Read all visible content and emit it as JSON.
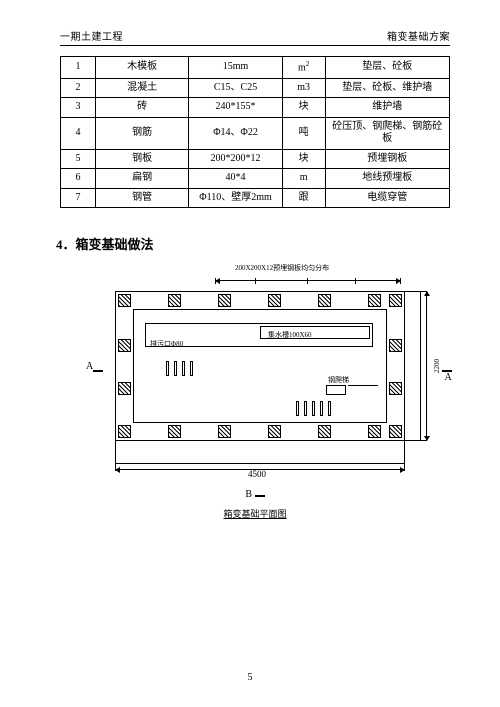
{
  "header": {
    "left": "一期土建工程",
    "right": "箱变基础方案"
  },
  "table": {
    "rows": [
      {
        "idx": "1",
        "name": "木模板",
        "spec": "15mm",
        "unit": "m²",
        "use": "垫层、砼板"
      },
      {
        "idx": "2",
        "name": "混凝土",
        "spec": "C15、C25",
        "unit": "m3",
        "use": "垫层、砼板、维护墙"
      },
      {
        "idx": "3",
        "name": "砖",
        "spec": "240*155*",
        "unit": "块",
        "use": "维护墙"
      },
      {
        "idx": "4",
        "name": "钢筋",
        "spec": "Φ14、Φ22",
        "unit": "吨",
        "use": "砼压顶、钢爬梯、钢筋砼板"
      },
      {
        "idx": "5",
        "name": "钢板",
        "spec": "200*200*12",
        "unit": "块",
        "use": "预埋钢板"
      },
      {
        "idx": "6",
        "name": "扁钢",
        "spec": "40*4",
        "unit": "m",
        "use": "地线预埋板"
      },
      {
        "idx": "7",
        "name": "钢管",
        "spec": "Φ110、壁厚2mm",
        "unit": "跟",
        "use": "电缆穿管"
      }
    ]
  },
  "section_title": "4．箱变基础做法",
  "drawing": {
    "top_note": "200X200X12预埋钢板均匀分布",
    "trough_label": "集水槽100X60",
    "hole_label": "排污口Φ80",
    "ladder_label": "钢爬梯",
    "dim_h": "4500",
    "dim_v": "2200",
    "sec_A": "A",
    "sec_B": "B",
    "caption": "箱变基础平面图"
  },
  "page_number": "5"
}
